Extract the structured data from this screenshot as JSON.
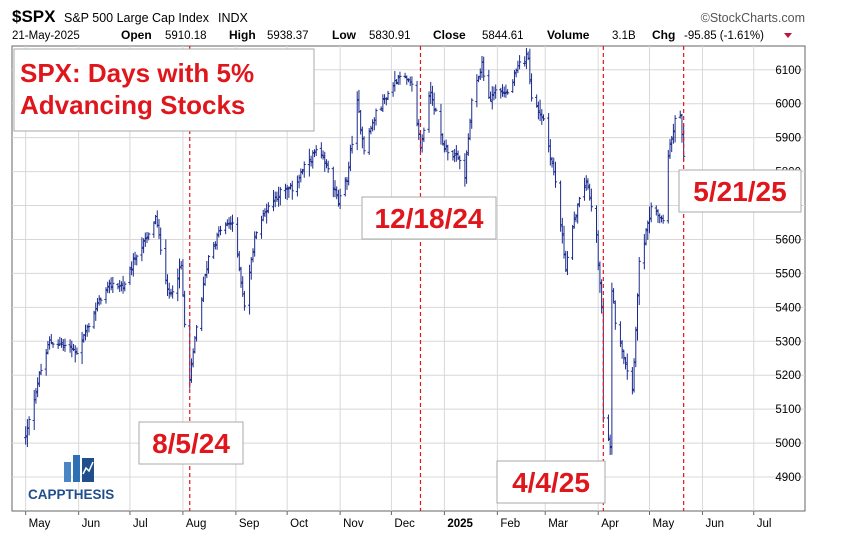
{
  "header": {
    "ticker": "$SPX",
    "name": "S&P 500 Large Cap Index",
    "exchange": "INDX",
    "date": "21-May-2025",
    "open_label": "Open",
    "open": "5910.18",
    "high_label": "High",
    "high": "5938.37",
    "low_label": "Low",
    "low": "5830.91",
    "close_label": "Close",
    "close": "5844.61",
    "volume_label": "Volume",
    "volume": "3.1B",
    "chg_label": "Chg",
    "chg": "-95.85 (-1.61%)",
    "source": "©StockCharts.com"
  },
  "chart_data": {
    "type": "ohlc",
    "title": "SPX: Days with 5% Advancing Stocks",
    "ylim": [
      4800,
      6170
    ],
    "y_ticks": [
      4900,
      5000,
      5100,
      5200,
      5300,
      5400,
      5500,
      5600,
      5700,
      5800,
      5900,
      6000,
      6100
    ],
    "x_ticks": [
      {
        "label": "May",
        "date": "2024-05-01"
      },
      {
        "label": "Jun",
        "date": "2024-06-01"
      },
      {
        "label": "Jul",
        "date": "2024-07-01"
      },
      {
        "label": "Aug",
        "date": "2024-08-01"
      },
      {
        "label": "Sep",
        "date": "2024-09-01"
      },
      {
        "label": "Oct",
        "date": "2024-10-01"
      },
      {
        "label": "Nov",
        "date": "2024-11-01"
      },
      {
        "label": "Dec",
        "date": "2024-12-01"
      },
      {
        "label": "2025",
        "date": "2025-01-01",
        "bold": true
      },
      {
        "label": "Feb",
        "date": "2025-02-01"
      },
      {
        "label": "Mar",
        "date": "2025-03-01"
      },
      {
        "label": "Apr",
        "date": "2025-04-01"
      },
      {
        "label": "May",
        "date": "2025-05-01"
      },
      {
        "label": "Jun",
        "date": "2025-06-01"
      },
      {
        "label": "Jul",
        "date": "2025-07-01"
      }
    ],
    "series_close": [
      [
        "2024-05-01",
        5018
      ],
      [
        "2024-05-08",
        5180
      ],
      [
        "2024-05-15",
        5300
      ],
      [
        "2024-05-22",
        5290
      ],
      [
        "2024-05-31",
        5270
      ],
      [
        "2024-06-07",
        5350
      ],
      [
        "2024-06-14",
        5430
      ],
      [
        "2024-06-21",
        5470
      ],
      [
        "2024-06-28",
        5460
      ],
      [
        "2024-07-05",
        5560
      ],
      [
        "2024-07-12",
        5610
      ],
      [
        "2024-07-16",
        5665
      ],
      [
        "2024-07-24",
        5430
      ],
      [
        "2024-07-31",
        5520
      ],
      [
        "2024-08-02",
        5346
      ],
      [
        "2024-08-05",
        5186
      ],
      [
        "2024-08-09",
        5340
      ],
      [
        "2024-08-16",
        5550
      ],
      [
        "2024-08-23",
        5630
      ],
      [
        "2024-08-30",
        5650
      ],
      [
        "2024-09-06",
        5410
      ],
      [
        "2024-09-13",
        5630
      ],
      [
        "2024-09-20",
        5700
      ],
      [
        "2024-09-27",
        5740
      ],
      [
        "2024-10-04",
        5750
      ],
      [
        "2024-10-11",
        5810
      ],
      [
        "2024-10-18",
        5860
      ],
      [
        "2024-10-25",
        5810
      ],
      [
        "2024-10-31",
        5705
      ],
      [
        "2024-11-05",
        5780
      ],
      [
        "2024-11-11",
        6001
      ],
      [
        "2024-11-15",
        5870
      ],
      [
        "2024-11-22",
        5970
      ],
      [
        "2024-11-29",
        6030
      ],
      [
        "2024-12-06",
        6090
      ],
      [
        "2024-12-13",
        6050
      ],
      [
        "2024-12-18",
        5872
      ],
      [
        "2024-12-24",
        6040
      ],
      [
        "2024-12-31",
        5880
      ],
      [
        "2025-01-10",
        5830
      ],
      [
        "2025-01-13",
        5790
      ],
      [
        "2025-01-17",
        6000
      ],
      [
        "2025-01-23",
        6118
      ],
      [
        "2025-01-27",
        6010
      ],
      [
        "2025-01-31",
        6040
      ],
      [
        "2025-02-07",
        6030
      ],
      [
        "2025-02-14",
        6115
      ],
      [
        "2025-02-19",
        6144
      ],
      [
        "2025-02-21",
        6013
      ],
      [
        "2025-02-28",
        5955
      ],
      [
        "2025-03-07",
        5770
      ],
      [
        "2025-03-13",
        5520
      ],
      [
        "2025-03-19",
        5680
      ],
      [
        "2025-03-25",
        5776
      ],
      [
        "2025-03-31",
        5610
      ],
      [
        "2025-04-03",
        5396
      ],
      [
        "2025-04-04",
        5074
      ],
      [
        "2025-04-08",
        4982
      ],
      [
        "2025-04-09",
        5456
      ],
      [
        "2025-04-11",
        5363
      ],
      [
        "2025-04-21",
        5158
      ],
      [
        "2025-04-25",
        5525
      ],
      [
        "2025-05-02",
        5686
      ],
      [
        "2025-05-09",
        5660
      ],
      [
        "2025-05-12",
        5844
      ],
      [
        "2025-05-16",
        5958
      ],
      [
        "2025-05-19",
        5963
      ],
      [
        "2025-05-21",
        5845
      ]
    ],
    "markers": [
      {
        "date": "2024-08-05",
        "label": "8/5/24"
      },
      {
        "date": "2024-12-18",
        "label": "12/18/24"
      },
      {
        "date": "2025-04-04",
        "label": "4/4/25"
      },
      {
        "date": "2025-05-21",
        "label": "5/21/25"
      }
    ],
    "colors": {
      "bars": "#1a2a8c",
      "marker": "#e0161d",
      "grid": "#d8d8d8"
    },
    "grid": true
  },
  "logo": {
    "text": "CAPPTHESIS"
  }
}
